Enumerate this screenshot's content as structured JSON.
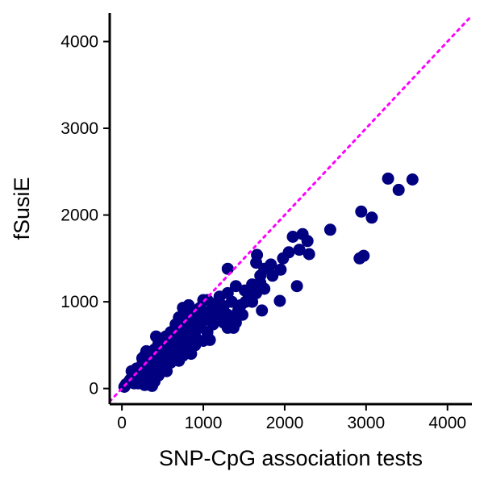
{
  "chart_data": {
    "type": "scatter",
    "title": "",
    "xlabel": "SNP-CpG association tests",
    "ylabel": "fSusiE",
    "xlim": [
      -150,
      4300
    ],
    "ylim": [
      -180,
      4330
    ],
    "x_ticks": [
      0,
      1000,
      2000,
      3000,
      4000
    ],
    "y_ticks": [
      0,
      1000,
      2000,
      3000,
      4000
    ],
    "grid": false,
    "legend": "none",
    "reference_line": {
      "slope": 1,
      "intercept": 0,
      "style": "dotted",
      "color": "#ff00ff"
    },
    "point_color": "#000080",
    "series": [
      {
        "name": "points",
        "points": [
          [
            3270,
            2420
          ],
          [
            3570,
            2410
          ],
          [
            3400,
            2290
          ],
          [
            2940,
            2040
          ],
          [
            3070,
            1970
          ],
          [
            2970,
            1530
          ],
          [
            2920,
            1500
          ],
          [
            2560,
            1830
          ],
          [
            2220,
            1780
          ],
          [
            2100,
            1750
          ],
          [
            2280,
            1700
          ],
          [
            2300,
            1550
          ],
          [
            2180,
            1600
          ],
          [
            2050,
            1570
          ],
          [
            1980,
            1500
          ],
          [
            2150,
            1180
          ],
          [
            1940,
            1010
          ],
          [
            1950,
            1370
          ],
          [
            1830,
            1430
          ],
          [
            1850,
            1300
          ],
          [
            1750,
            1380
          ],
          [
            1700,
            1300
          ],
          [
            1660,
            1540
          ],
          [
            1650,
            1450
          ],
          [
            1600,
            1200
          ],
          [
            1700,
            1220
          ],
          [
            1750,
            1150
          ],
          [
            1650,
            1100
          ],
          [
            1600,
            1000
          ],
          [
            1720,
            900
          ],
          [
            1510,
            1130
          ],
          [
            1520,
            1000
          ],
          [
            1430,
            900
          ],
          [
            1300,
            1380
          ],
          [
            1400,
            1180
          ],
          [
            1300,
            1100
          ],
          [
            1200,
            1060
          ],
          [
            1480,
            850
          ],
          [
            1300,
            850
          ],
          [
            1250,
            950
          ],
          [
            1400,
            760
          ],
          [
            1370,
            700
          ],
          [
            1300,
            700
          ],
          [
            1200,
            850
          ],
          [
            1150,
            960
          ],
          [
            1100,
            900
          ],
          [
            1050,
            1020
          ],
          [
            1000,
            1020
          ],
          [
            960,
            930
          ],
          [
            900,
            900
          ],
          [
            1100,
            800
          ],
          [
            1000,
            800
          ],
          [
            900,
            800
          ],
          [
            850,
            850
          ],
          [
            800,
            900
          ],
          [
            750,
            930
          ],
          [
            700,
            820
          ],
          [
            700,
            700
          ],
          [
            820,
            700
          ],
          [
            950,
            700
          ],
          [
            1050,
            650
          ],
          [
            900,
            600
          ],
          [
            800,
            600
          ],
          [
            750,
            550
          ],
          [
            700,
            600
          ],
          [
            650,
            680
          ],
          [
            600,
            650
          ],
          [
            580,
            550
          ],
          [
            540,
            600
          ],
          [
            650,
            500
          ],
          [
            600,
            450
          ],
          [
            700,
            450
          ],
          [
            800,
            500
          ],
          [
            900,
            500
          ],
          [
            1000,
            550
          ],
          [
            850,
            400
          ],
          [
            750,
            380
          ],
          [
            650,
            350
          ],
          [
            500,
            500
          ],
          [
            450,
            520
          ],
          [
            420,
            600
          ],
          [
            480,
            400
          ],
          [
            550,
            400
          ],
          [
            400,
            450
          ],
          [
            350,
            400
          ],
          [
            300,
            430
          ],
          [
            280,
            380
          ],
          [
            350,
            320
          ],
          [
            420,
            300
          ],
          [
            500,
            300
          ],
          [
            600,
            300
          ],
          [
            700,
            320
          ],
          [
            450,
            250
          ],
          [
            350,
            250
          ],
          [
            300,
            300
          ],
          [
            250,
            280
          ],
          [
            220,
            200
          ],
          [
            300,
            200
          ],
          [
            380,
            180
          ],
          [
            450,
            150
          ],
          [
            550,
            200
          ],
          [
            200,
            150
          ],
          [
            150,
            120
          ],
          [
            250,
            120
          ],
          [
            100,
            100
          ],
          [
            150,
            60
          ],
          [
            200,
            60
          ],
          [
            50,
            50
          ],
          [
            30,
            20
          ],
          [
            120,
            200
          ],
          [
            180,
            230
          ],
          [
            330,
            100
          ],
          [
            400,
            80
          ],
          [
            370,
            30
          ],
          [
            280,
            40
          ],
          [
            250,
            350
          ],
          [
            520,
            350
          ],
          [
            620,
            400
          ],
          [
            480,
            480
          ],
          [
            560,
            520
          ],
          [
            880,
            660
          ],
          [
            980,
            760
          ],
          [
            1120,
            740
          ],
          [
            1180,
            1000
          ],
          [
            760,
            770
          ],
          [
            660,
            740
          ],
          [
            820,
            960
          ],
          [
            1020,
            880
          ],
          [
            1080,
            560
          ],
          [
            940,
            840
          ],
          [
            760,
            680
          ],
          [
            600,
            560
          ],
          [
            700,
            380
          ],
          [
            1250,
            760
          ],
          [
            1350,
            1000
          ],
          [
            1460,
            960
          ],
          [
            1560,
            1060
          ],
          [
            1380,
            800
          ],
          [
            860,
            620
          ],
          [
            720,
            530
          ],
          [
            640,
            590
          ],
          [
            560,
            460
          ],
          [
            460,
            360
          ],
          [
            390,
            330
          ],
          [
            320,
            270
          ]
        ]
      }
    ]
  }
}
